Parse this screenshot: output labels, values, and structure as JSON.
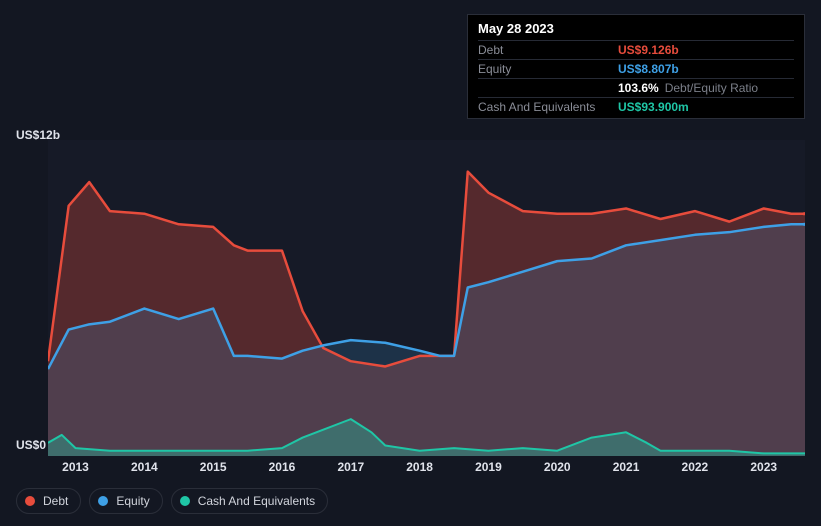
{
  "tooltip": {
    "date": "May 28 2023",
    "rows": [
      {
        "label": "Debt",
        "value": "US$9.126b",
        "color": "#e74c3c"
      },
      {
        "label": "Equity",
        "value": "US$8.807b",
        "color": "#3ea0e6"
      },
      {
        "label": "",
        "value": "103.6%",
        "extra": "Debt/Equity Ratio",
        "color": "#ffffff"
      },
      {
        "label": "Cash And Equivalents",
        "value": "US$93.900m",
        "color": "#1fc6a6"
      }
    ]
  },
  "chart": {
    "type": "area",
    "background_color": "#161a27",
    "page_background": "#131722",
    "y_axis": {
      "top_label": "US$12b",
      "bottom_label": "US$0",
      "min": 0,
      "max": 12,
      "label_color": "#e0e3eb",
      "label_fontsize": 12
    },
    "x_axis": {
      "years": [
        "2013",
        "2014",
        "2015",
        "2016",
        "2017",
        "2018",
        "2019",
        "2020",
        "2021",
        "2022",
        "2023"
      ],
      "min": 2012.6,
      "max": 2023.6,
      "label_color": "#e0e3eb",
      "label_fontsize": 12
    },
    "series": [
      {
        "name": "Debt",
        "color": "#e74c3c",
        "fill_opacity": 0.3,
        "line_width": 2.5,
        "data": [
          [
            2012.6,
            3.6
          ],
          [
            2012.9,
            9.5
          ],
          [
            2013.2,
            10.4
          ],
          [
            2013.5,
            9.3
          ],
          [
            2014.0,
            9.2
          ],
          [
            2014.5,
            8.8
          ],
          [
            2015.0,
            8.7
          ],
          [
            2015.3,
            8.0
          ],
          [
            2015.5,
            7.8
          ],
          [
            2016.0,
            7.8
          ],
          [
            2016.3,
            5.5
          ],
          [
            2016.6,
            4.1
          ],
          [
            2017.0,
            3.6
          ],
          [
            2017.5,
            3.4
          ],
          [
            2018.0,
            3.8
          ],
          [
            2018.3,
            3.8
          ],
          [
            2018.5,
            3.8
          ],
          [
            2018.7,
            10.8
          ],
          [
            2019.0,
            10.0
          ],
          [
            2019.5,
            9.3
          ],
          [
            2020.0,
            9.2
          ],
          [
            2020.5,
            9.2
          ],
          [
            2021.0,
            9.4
          ],
          [
            2021.5,
            9.0
          ],
          [
            2022.0,
            9.3
          ],
          [
            2022.5,
            8.9
          ],
          [
            2023.0,
            9.4
          ],
          [
            2023.4,
            9.2
          ],
          [
            2023.6,
            9.2
          ]
        ]
      },
      {
        "name": "Equity",
        "color": "#3ea0e6",
        "fill_opacity": 0.18,
        "line_width": 2.5,
        "data": [
          [
            2012.6,
            3.3
          ],
          [
            2012.9,
            4.8
          ],
          [
            2013.2,
            5.0
          ],
          [
            2013.5,
            5.1
          ],
          [
            2014.0,
            5.6
          ],
          [
            2014.5,
            5.2
          ],
          [
            2015.0,
            5.6
          ],
          [
            2015.3,
            3.8
          ],
          [
            2015.5,
            3.8
          ],
          [
            2016.0,
            3.7
          ],
          [
            2016.3,
            4.0
          ],
          [
            2016.6,
            4.2
          ],
          [
            2017.0,
            4.4
          ],
          [
            2017.5,
            4.3
          ],
          [
            2018.0,
            4.0
          ],
          [
            2018.3,
            3.8
          ],
          [
            2018.5,
            3.8
          ],
          [
            2018.7,
            6.4
          ],
          [
            2019.0,
            6.6
          ],
          [
            2019.5,
            7.0
          ],
          [
            2020.0,
            7.4
          ],
          [
            2020.5,
            7.5
          ],
          [
            2021.0,
            8.0
          ],
          [
            2021.5,
            8.2
          ],
          [
            2022.0,
            8.4
          ],
          [
            2022.5,
            8.5
          ],
          [
            2023.0,
            8.7
          ],
          [
            2023.4,
            8.8
          ],
          [
            2023.6,
            8.8
          ]
        ]
      },
      {
        "name": "Cash And Equivalents",
        "color": "#1fc6a6",
        "fill_opacity": 0.35,
        "line_width": 2,
        "data": [
          [
            2012.6,
            0.5
          ],
          [
            2012.8,
            0.8
          ],
          [
            2013.0,
            0.3
          ],
          [
            2013.5,
            0.2
          ],
          [
            2014.0,
            0.2
          ],
          [
            2014.5,
            0.2
          ],
          [
            2015.0,
            0.2
          ],
          [
            2015.5,
            0.2
          ],
          [
            2016.0,
            0.3
          ],
          [
            2016.3,
            0.7
          ],
          [
            2016.6,
            1.0
          ],
          [
            2017.0,
            1.4
          ],
          [
            2017.3,
            0.9
          ],
          [
            2017.5,
            0.4
          ],
          [
            2018.0,
            0.2
          ],
          [
            2018.5,
            0.3
          ],
          [
            2019.0,
            0.2
          ],
          [
            2019.5,
            0.3
          ],
          [
            2020.0,
            0.2
          ],
          [
            2020.5,
            0.7
          ],
          [
            2021.0,
            0.9
          ],
          [
            2021.3,
            0.5
          ],
          [
            2021.5,
            0.2
          ],
          [
            2022.0,
            0.2
          ],
          [
            2022.5,
            0.2
          ],
          [
            2023.0,
            0.1
          ],
          [
            2023.6,
            0.1
          ]
        ]
      }
    ],
    "marker": {
      "x": 2023.6,
      "debt_color": "#e74c3c",
      "equity_color": "#3ea0e6"
    }
  },
  "legend": {
    "items": [
      {
        "label": "Debt",
        "color": "#e74c3c"
      },
      {
        "label": "Equity",
        "color": "#3ea0e6"
      },
      {
        "label": "Cash And Equivalents",
        "color": "#1fc6a6"
      }
    ],
    "border_color": "#2a2e39"
  }
}
